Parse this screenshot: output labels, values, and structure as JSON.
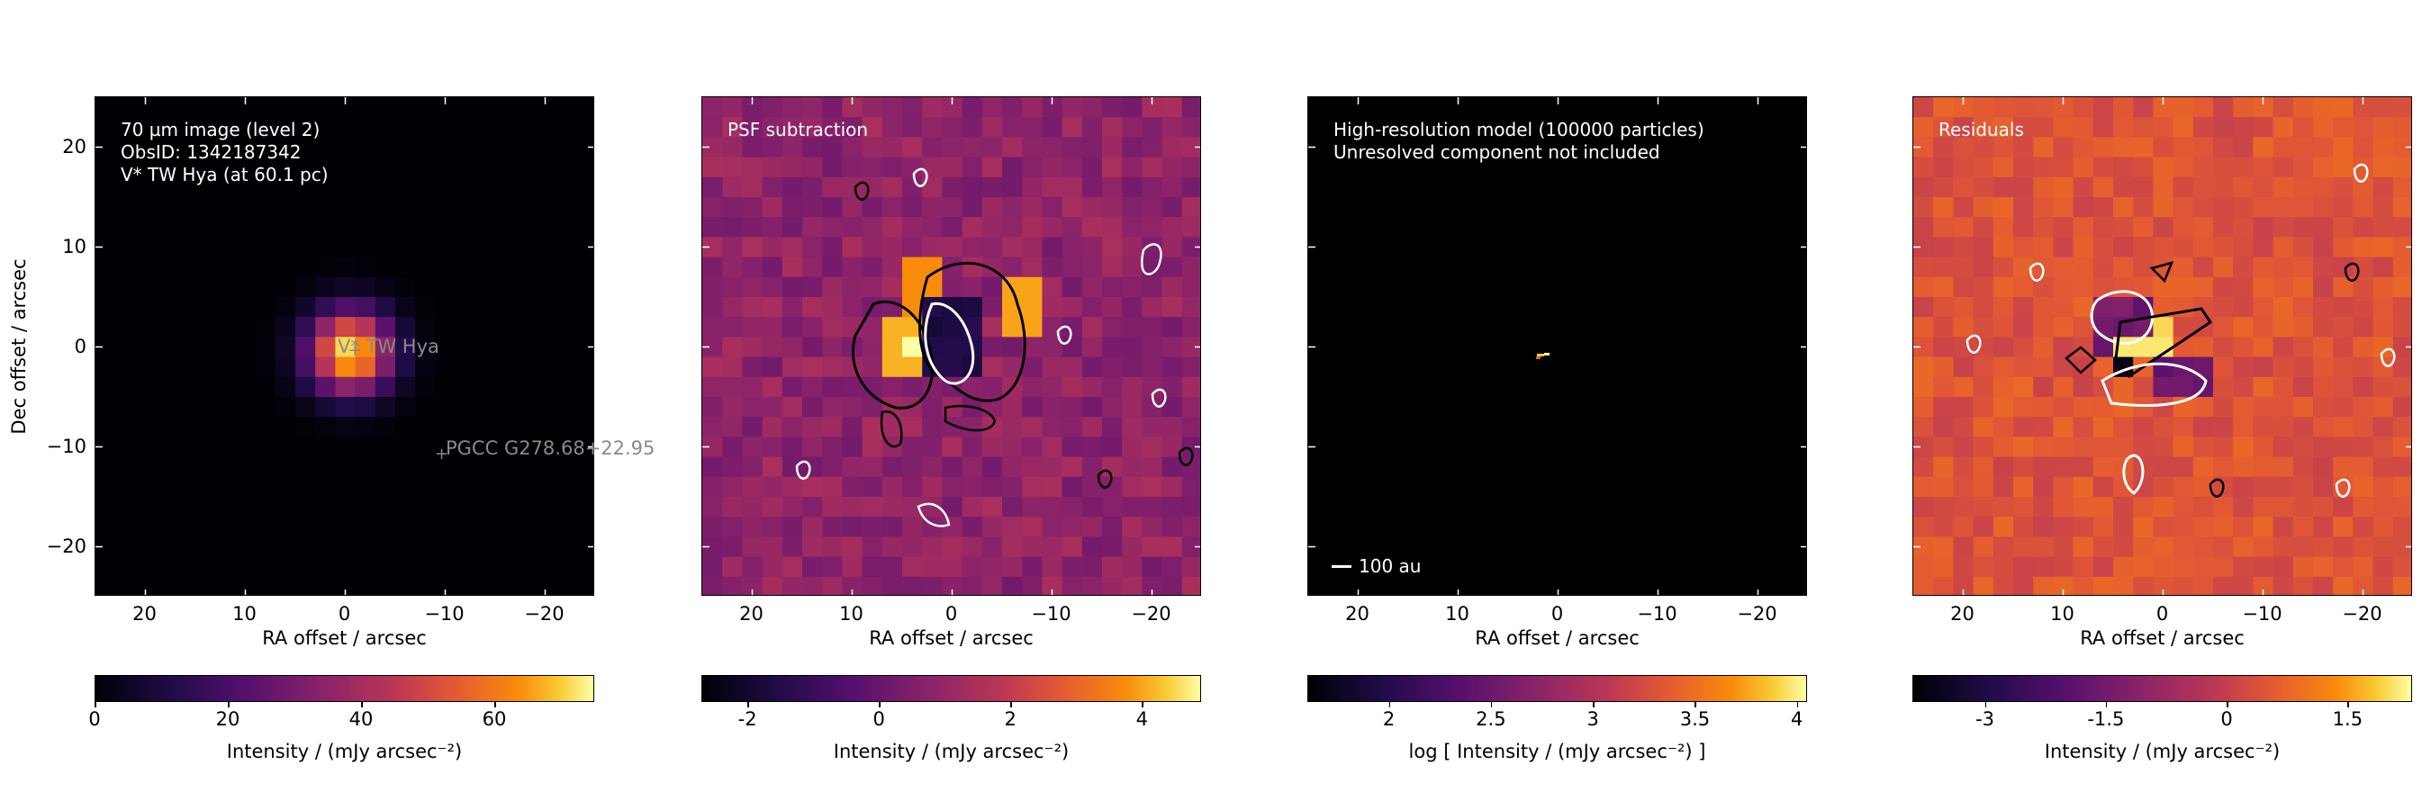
{
  "chart_data": [
    {
      "type": "heatmap",
      "panel_text": [
        "70 µm image (level 2)",
        "ObsID: 1342187342",
        "V* TW Hya (at 60.1 pc)"
      ],
      "xlabel": "RA offset / arcsec",
      "ylabel": "Dec offset / arcsec",
      "xlim": [
        25,
        -25
      ],
      "ylim": [
        -25,
        25
      ],
      "xticks": [
        "20",
        "10",
        "0",
        "−10",
        "−20"
      ],
      "yticks": [
        "20",
        "10",
        "0",
        "−10",
        "−20"
      ],
      "colormap": "inferno",
      "colorbar": {
        "label": "Intensity / (mJy arcsec⁻²)",
        "range": [
          0,
          75
        ],
        "ticks": [
          "0",
          "20",
          "40",
          "60"
        ]
      },
      "sources": [
        {
          "label": "V* TW Hya",
          "x": -1.0,
          "y": -0.5
        },
        {
          "label": "PGCC G278.68+22.95",
          "x": -9.8,
          "y": -11.2
        }
      ]
    },
    {
      "type": "heatmap",
      "panel_text": [
        "PSF subtraction"
      ],
      "xlabel": "RA offset / arcsec",
      "xlim": [
        25,
        -25
      ],
      "ylim": [
        -25,
        25
      ],
      "xticks": [
        "20",
        "10",
        "0",
        "−10",
        "−20"
      ],
      "colormap": "inferno",
      "colorbar": {
        "label": "Intensity / (mJy arcsec⁻²)",
        "range": [
          -2.7,
          4.9
        ],
        "ticks": [
          "-2",
          "0",
          "2",
          "4"
        ]
      },
      "contours": "black (positive) and white (negative) significance contours"
    },
    {
      "type": "heatmap",
      "panel_text": [
        "High-resolution model (100000 particles)",
        "Unresolved component not included"
      ],
      "scalebar_label": "100 au",
      "xlabel": "RA offset / arcsec",
      "xlim": [
        25,
        -25
      ],
      "ylim": [
        -25,
        25
      ],
      "xticks": [
        "20",
        "10",
        "0",
        "−10",
        "−20"
      ],
      "colormap": "inferno",
      "colorbar": {
        "label": "log [ Intensity / (mJy arcsec⁻²) ]",
        "range": [
          1.6,
          4.05
        ],
        "ticks": [
          "2",
          "2.5",
          "3",
          "3.5",
          "4"
        ]
      }
    },
    {
      "type": "heatmap",
      "panel_text": [
        "Residuals"
      ],
      "xlabel": "RA offset / arcsec",
      "xlim": [
        25,
        -25
      ],
      "ylim": [
        -25,
        25
      ],
      "xticks": [
        "20",
        "10",
        "0",
        "−10",
        "−20"
      ],
      "colormap": "inferno",
      "colorbar": {
        "label": "Intensity / (mJy arcsec⁻²)",
        "range": [
          -3.9,
          2.3
        ],
        "ticks": [
          "-3",
          "-1.5",
          "0",
          "1.5"
        ]
      }
    }
  ]
}
